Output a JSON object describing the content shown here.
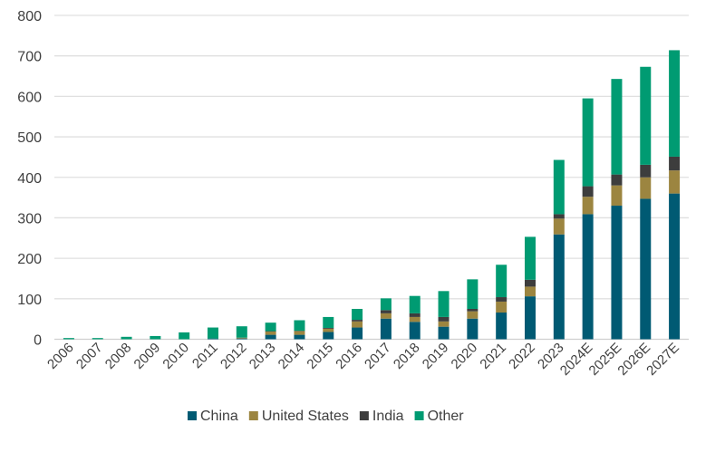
{
  "chart_data": {
    "type": "bar",
    "stacked": true,
    "title": "",
    "xlabel": "",
    "ylabel": "",
    "ylim": [
      0,
      800
    ],
    "yticks": [
      0,
      100,
      200,
      300,
      400,
      500,
      600,
      700,
      800
    ],
    "grid": "horizontal",
    "legend_position": "bottom",
    "categories": [
      "2006",
      "2007",
      "2008",
      "2009",
      "2010",
      "2011",
      "2012",
      "2013",
      "2014",
      "2015",
      "2016",
      "2017",
      "2018",
      "2019",
      "2020",
      "2021",
      "2022",
      "2023",
      "2024E",
      "2025E",
      "2026E",
      "2027E"
    ],
    "series": [
      {
        "name": "China",
        "color": "#005A73",
        "values": [
          0,
          0,
          0,
          0,
          0,
          2,
          2,
          11,
          11,
          18,
          29,
          51,
          43,
          31,
          51,
          66,
          106,
          259,
          309,
          330,
          347,
          360
        ]
      },
      {
        "name": "United States",
        "color": "#9C8540",
        "values": [
          0,
          0,
          0,
          0,
          0,
          0,
          2,
          8,
          9,
          8,
          15,
          13,
          12,
          13,
          18,
          27,
          24,
          39,
          43,
          50,
          53,
          57
        ]
      },
      {
        "name": "India",
        "color": "#3D3D3D",
        "values": [
          0,
          0,
          0,
          0,
          0,
          0,
          0,
          1,
          1,
          2,
          4,
          8,
          9,
          11,
          6,
          11,
          17,
          11,
          26,
          27,
          31,
          34
        ]
      },
      {
        "name": "Other",
        "color": "#009B72",
        "values": [
          3,
          3,
          6,
          8,
          17,
          27,
          28,
          21,
          26,
          27,
          27,
          29,
          43,
          64,
          73,
          80,
          106,
          134,
          217,
          236,
          242,
          263
        ]
      }
    ]
  }
}
